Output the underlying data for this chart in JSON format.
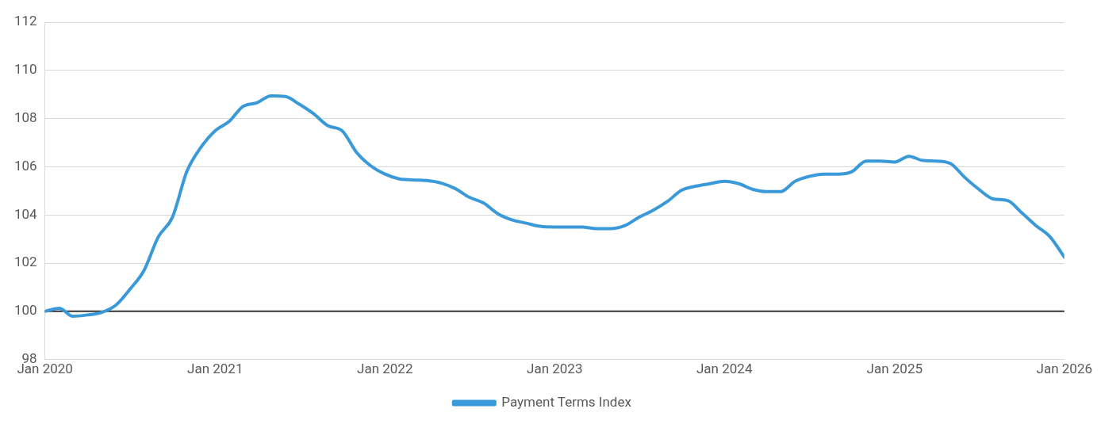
{
  "chart_data": {
    "type": "line",
    "x": [
      "2020-01",
      "2020-02",
      "2020-03",
      "2020-04",
      "2020-05",
      "2020-06",
      "2020-07",
      "2020-08",
      "2020-09",
      "2020-10",
      "2020-11",
      "2020-12",
      "2021-01",
      "2021-02",
      "2021-03",
      "2021-04",
      "2021-05",
      "2021-06",
      "2021-07",
      "2021-08",
      "2021-09",
      "2021-10",
      "2021-11",
      "2021-12",
      "2022-01",
      "2022-02",
      "2022-03",
      "2022-04",
      "2022-05",
      "2022-06",
      "2022-07",
      "2022-08",
      "2022-09",
      "2022-10",
      "2022-11",
      "2022-12",
      "2023-01",
      "2023-02",
      "2023-03",
      "2023-04",
      "2023-05",
      "2023-06",
      "2023-07",
      "2023-08",
      "2023-09",
      "2023-10",
      "2023-11",
      "2023-12",
      "2024-01",
      "2024-02",
      "2024-03",
      "2024-04",
      "2024-05",
      "2024-06",
      "2024-07",
      "2024-08",
      "2024-09",
      "2024-10",
      "2024-11",
      "2024-12",
      "2025-01",
      "2025-02",
      "2025-03",
      "2025-04",
      "2025-05",
      "2025-06",
      "2025-07",
      "2025-08",
      "2025-09",
      "2025-10",
      "2025-11",
      "2025-12",
      "2026-01"
    ],
    "series": [
      {
        "name": "Payment Terms Index",
        "color": "#3a9ad9",
        "values": [
          100.0,
          100.13,
          99.8,
          99.85,
          99.95,
          100.25,
          100.9,
          101.7,
          103.1,
          103.9,
          105.8,
          106.8,
          107.5,
          107.9,
          108.5,
          108.66,
          108.95,
          108.92,
          108.6,
          108.2,
          107.7,
          107.5,
          106.6,
          106.05,
          105.7,
          105.5,
          105.46,
          105.43,
          105.33,
          105.1,
          104.74,
          104.5,
          104.05,
          103.8,
          103.66,
          103.53,
          103.5,
          103.5,
          103.5,
          103.43,
          103.43,
          103.56,
          103.9,
          104.2,
          104.57,
          105.03,
          105.2,
          105.3,
          105.4,
          105.3,
          105.07,
          104.97,
          104.97,
          105.4,
          105.6,
          105.7,
          105.7,
          105.8,
          106.24,
          106.24,
          106.2,
          106.44,
          106.27,
          106.24,
          106.14,
          105.56,
          105.07,
          104.67,
          104.6,
          104.1,
          103.56,
          103.1,
          102.25
        ]
      }
    ],
    "xlim": [
      "2020-01",
      "2026-01"
    ],
    "xticks": [
      {
        "value": "2020-01",
        "label": "Jan 2020"
      },
      {
        "value": "2021-01",
        "label": "Jan 2021"
      },
      {
        "value": "2022-01",
        "label": "Jan 2022"
      },
      {
        "value": "2023-01",
        "label": "Jan 2023"
      },
      {
        "value": "2024-01",
        "label": "Jan 2024"
      },
      {
        "value": "2025-01",
        "label": "Jan 2025"
      },
      {
        "value": "2026-01",
        "label": "Jan 2026"
      }
    ],
    "ylim": [
      98,
      112
    ],
    "yticks": [
      98,
      100,
      102,
      104,
      106,
      108,
      110,
      112
    ],
    "ref_lines": [
      {
        "axis": "y",
        "value": 100,
        "color": "#333333"
      }
    ],
    "grid": "y",
    "legend": "bottom",
    "marker": "none",
    "line_style": "solid"
  }
}
